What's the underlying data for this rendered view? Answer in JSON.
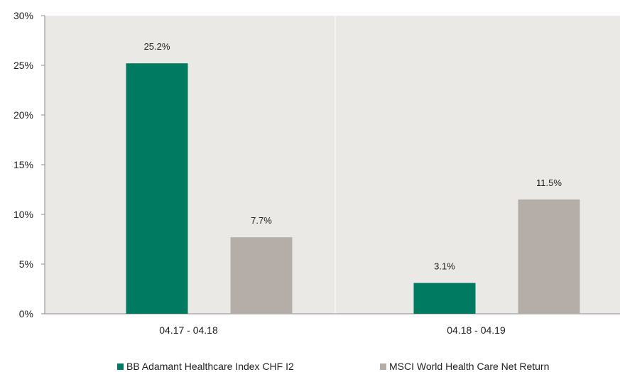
{
  "chart_data": {
    "type": "bar",
    "categories": [
      "04.17 - 04.18",
      "04.18 - 04.19"
    ],
    "series": [
      {
        "name": "BB Adamant Healthcare Index CHF I2",
        "values": [
          25.2,
          3.1
        ],
        "labels": [
          "25.2%",
          "3.1%"
        ],
        "color": "#007a60"
      },
      {
        "name": "MSCI World Health Care Net Return",
        "values": [
          7.7,
          11.5
        ],
        "labels": [
          "7.7%",
          "11.5%"
        ],
        "color": "#b5aea8"
      }
    ],
    "y_ticks": [
      "0%",
      "5%",
      "10%",
      "15%",
      "20%",
      "25%",
      "30%"
    ],
    "ylim": [
      0,
      30
    ],
    "grid": false,
    "legend_position": "bottom",
    "plot_background": "#ebe9e5"
  }
}
